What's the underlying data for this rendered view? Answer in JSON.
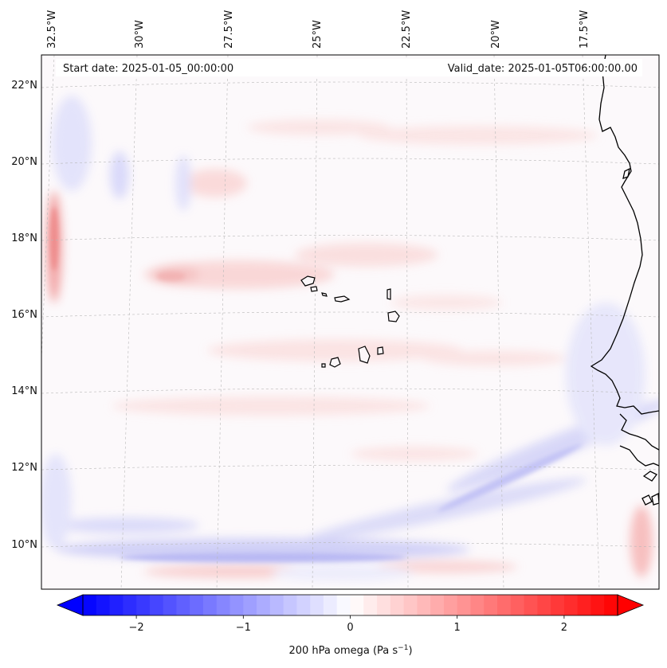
{
  "map": {
    "start_date": "Start date: 2025-01-05_00:00:00",
    "valid_date": "Valid_date: 2025-01-05T06:00:00.00",
    "lon_ticks": [
      "32.5°W",
      "30°W",
      "27.5°W",
      "25°W",
      "22.5°W",
      "20°W",
      "17.5°W"
    ],
    "lat_ticks": [
      "22°N",
      "20°N",
      "18°N",
      "16°N",
      "14°N",
      "12°N",
      "10°N"
    ],
    "gridlines": "dashed",
    "coastlines": true
  },
  "colorbar": {
    "label_main": "200 hPa omega (Pa s",
    "label_exp": "−1",
    "label_close": ")",
    "ticks": [
      "−2",
      "−1",
      "0",
      "1",
      "2"
    ],
    "tick_values": [
      -2,
      -1,
      0,
      1,
      2
    ],
    "range": [
      -2.5,
      2.5
    ],
    "extend": "both",
    "colormap": "bwr",
    "low_color": "#0000ff",
    "mid_color": "#ffffff",
    "high_color": "#ff0000"
  }
}
